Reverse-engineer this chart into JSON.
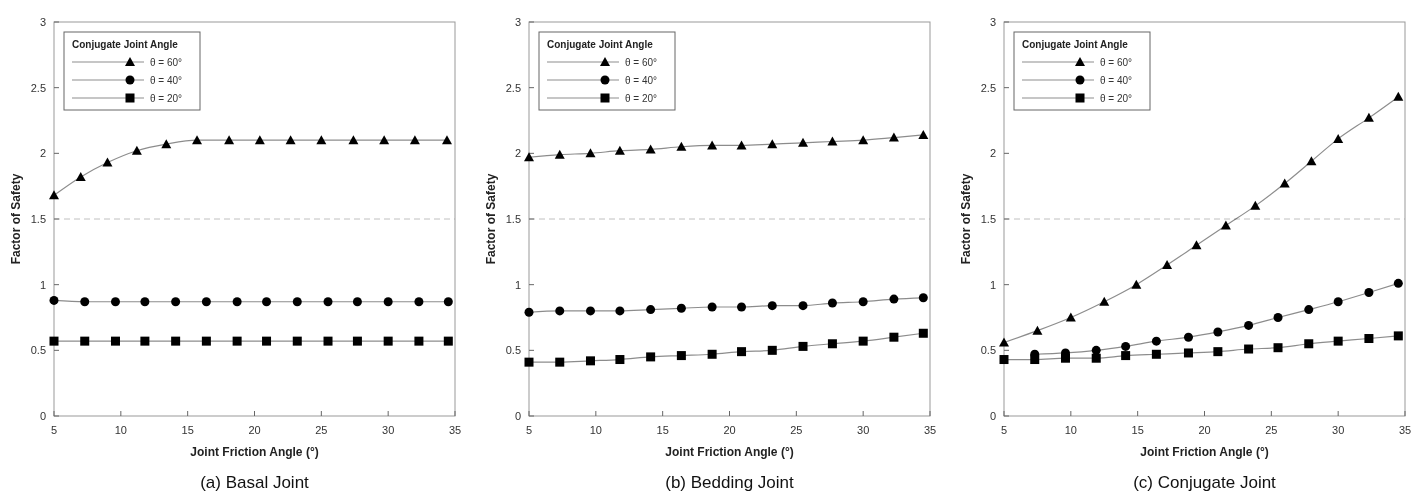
{
  "chart_data": [
    {
      "type": "line",
      "title": "(a) Basal Joint",
      "xlabel": "Joint Friction Angle (°)",
      "ylabel": "Factor of Safety",
      "legend_title": "Conjugate Joint Angle",
      "legend": "top left",
      "xlim": [
        5,
        35
      ],
      "ylim": [
        0,
        3
      ],
      "xticks": [
        5,
        10,
        15,
        20,
        25,
        30,
        35
      ],
      "yticks": [
        0,
        0.5,
        1,
        1.5,
        2,
        2.5,
        3
      ],
      "ref_lines": [
        {
          "axis": "y",
          "value": 1.5,
          "line_style": "dashed",
          "color": "#c0c0c0"
        }
      ],
      "series": [
        {
          "name": "θ = 60°",
          "color": "#000000",
          "marker": "triangle",
          "x": [
            5,
            7,
            9,
            11.2,
            13.4,
            15.7,
            18.1,
            20.4,
            22.7,
            25,
            27.4,
            29.7,
            32,
            34.4
          ],
          "values": [
            1.68,
            1.82,
            1.93,
            2.02,
            2.07,
            2.1,
            2.1,
            2.1,
            2.1,
            2.1,
            2.1,
            2.1,
            2.1,
            2.1
          ]
        },
        {
          "name": "θ = 40°",
          "color": "#000000",
          "marker": "circle",
          "x": [
            5,
            7.3,
            9.6,
            11.8,
            14.1,
            16.4,
            18.7,
            20.9,
            23.2,
            25.5,
            27.7,
            30,
            32.3,
            34.5
          ],
          "values": [
            0.88,
            0.87,
            0.87,
            0.87,
            0.87,
            0.87,
            0.87,
            0.87,
            0.87,
            0.87,
            0.87,
            0.87,
            0.87,
            0.87
          ]
        },
        {
          "name": "θ = 20°",
          "color": "#000000",
          "marker": "square",
          "x": [
            5,
            7.3,
            9.6,
            11.8,
            14.1,
            16.4,
            18.7,
            20.9,
            23.2,
            25.5,
            27.7,
            30,
            32.3,
            34.5
          ],
          "values": [
            0.57,
            0.57,
            0.57,
            0.57,
            0.57,
            0.57,
            0.57,
            0.57,
            0.57,
            0.57,
            0.57,
            0.57,
            0.57,
            0.57
          ]
        }
      ]
    },
    {
      "type": "line",
      "title": "(b) Bedding Joint",
      "xlabel": "Joint Friction Angle (°)",
      "ylabel": "Factor of Safety",
      "legend_title": "Conjugate Joint Angle",
      "legend": "top left",
      "xlim": [
        5,
        35
      ],
      "ylim": [
        0,
        3
      ],
      "xticks": [
        5,
        10,
        15,
        20,
        25,
        30,
        35
      ],
      "yticks": [
        0,
        0.5,
        1,
        1.5,
        2,
        2.5,
        3
      ],
      "ref_lines": [
        {
          "axis": "y",
          "value": 1.5,
          "line_style": "dashed",
          "color": "#c0c0c0"
        }
      ],
      "series": [
        {
          "name": "θ = 60°",
          "color": "#000000",
          "marker": "triangle",
          "x": [
            5,
            7.3,
            9.6,
            11.8,
            14.1,
            16.4,
            18.7,
            20.9,
            23.2,
            25.5,
            27.7,
            30,
            32.3,
            34.5
          ],
          "values": [
            1.97,
            1.99,
            2.0,
            2.02,
            2.03,
            2.05,
            2.06,
            2.06,
            2.07,
            2.08,
            2.09,
            2.1,
            2.12,
            2.14
          ]
        },
        {
          "name": "θ = 40°",
          "color": "#000000",
          "marker": "circle",
          "x": [
            5,
            7.3,
            9.6,
            11.8,
            14.1,
            16.4,
            18.7,
            20.9,
            23.2,
            25.5,
            27.7,
            30,
            32.3,
            34.5
          ],
          "values": [
            0.79,
            0.8,
            0.8,
            0.8,
            0.81,
            0.82,
            0.83,
            0.83,
            0.84,
            0.84,
            0.86,
            0.87,
            0.89,
            0.9
          ]
        },
        {
          "name": "θ = 20°",
          "color": "#000000",
          "marker": "square",
          "x": [
            5,
            7.3,
            9.6,
            11.8,
            14.1,
            16.4,
            18.7,
            20.9,
            23.2,
            25.5,
            27.7,
            30,
            32.3,
            34.5
          ],
          "values": [
            0.41,
            0.41,
            0.42,
            0.43,
            0.45,
            0.46,
            0.47,
            0.49,
            0.5,
            0.53,
            0.55,
            0.57,
            0.6,
            0.63
          ]
        }
      ]
    },
    {
      "type": "line",
      "title": "(c) Conjugate Joint",
      "xlabel": "Joint Friction Angle (°)",
      "ylabel": "Factor of Safety",
      "legend_title": "Conjugate Joint Angle",
      "legend": "top left",
      "xlim": [
        5,
        35
      ],
      "ylim": [
        0,
        3
      ],
      "xticks": [
        5,
        10,
        15,
        20,
        25,
        30,
        35
      ],
      "yticks": [
        0,
        0.5,
        1,
        1.5,
        2,
        2.5,
        3
      ],
      "ref_lines": [
        {
          "axis": "y",
          "value": 1.5,
          "line_style": "dashed",
          "color": "#c0c0c0"
        }
      ],
      "series": [
        {
          "name": "θ = 60°",
          "color": "#000000",
          "marker": "triangle",
          "x": [
            5,
            7.5,
            10,
            12.5,
            14.9,
            17.2,
            19.4,
            21.6,
            23.8,
            26,
            28,
            30,
            32.3,
            34.5
          ],
          "values": [
            0.56,
            0.65,
            0.75,
            0.87,
            1.0,
            1.15,
            1.3,
            1.45,
            1.6,
            1.77,
            1.94,
            2.11,
            2.27,
            2.43
          ]
        },
        {
          "name": "θ = 40°",
          "color": "#000000",
          "marker": "circle",
          "x": [
            7.3,
            9.6,
            11.9,
            14.1,
            16.4,
            18.8,
            21,
            23.3,
            25.5,
            27.8,
            30,
            32.3,
            34.5
          ],
          "values": [
            0.47,
            0.48,
            0.5,
            0.53,
            0.57,
            0.6,
            0.64,
            0.69,
            0.75,
            0.81,
            0.87,
            0.94,
            1.01
          ]
        },
        {
          "name": "θ = 20°",
          "color": "#000000",
          "marker": "square",
          "x": [
            5,
            7.3,
            9.6,
            11.9,
            14.1,
            16.4,
            18.8,
            21,
            23.3,
            25.5,
            27.8,
            30,
            32.3,
            34.5
          ],
          "values": [
            0.43,
            0.43,
            0.44,
            0.44,
            0.46,
            0.47,
            0.48,
            0.49,
            0.51,
            0.52,
            0.55,
            0.57,
            0.59,
            0.61
          ]
        }
      ]
    }
  ]
}
